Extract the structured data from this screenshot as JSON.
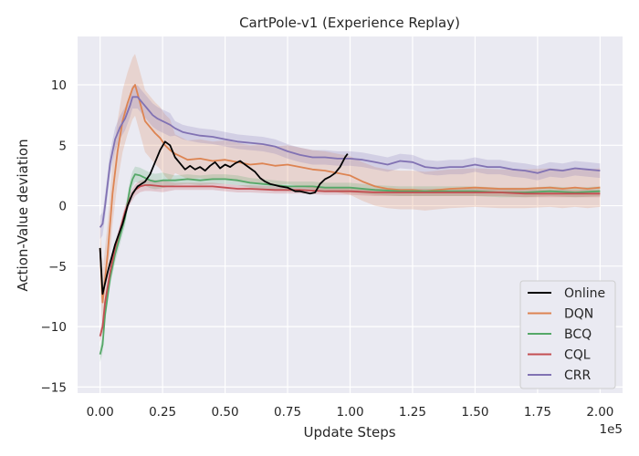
{
  "chart_data": {
    "type": "line",
    "title": "CartPole-v1 (Experience Replay)",
    "xlabel": "Update Steps",
    "ylabel": "Action-Value deviation",
    "x_offset_label": "1e5",
    "xlim": [
      -0.09,
      2.09
    ],
    "ylim": [
      -15.5,
      14
    ],
    "xticks": [
      0.0,
      0.25,
      0.5,
      0.75,
      1.0,
      1.25,
      1.5,
      1.75,
      2.0
    ],
    "xtick_labels": [
      "0.00",
      "0.25",
      "0.50",
      "0.75",
      "1.00",
      "1.25",
      "1.50",
      "1.75",
      "2.00"
    ],
    "yticks": [
      -15,
      -10,
      -5,
      0,
      5,
      10
    ],
    "ytick_labels": [
      "−15",
      "−10",
      "−5",
      "0",
      "5",
      "10"
    ],
    "grid": true,
    "legend_position": "lower-right",
    "series": [
      {
        "name": "Online",
        "color": "#000000",
        "band": 0,
        "points": [
          [
            0.0,
            -3.5
          ],
          [
            0.01,
            -7.3
          ],
          [
            0.03,
            -5.5
          ],
          [
            0.06,
            -3.2
          ],
          [
            0.09,
            -1.5
          ],
          [
            0.11,
            0.0
          ],
          [
            0.13,
            1.0
          ],
          [
            0.15,
            1.6
          ],
          [
            0.18,
            2.0
          ],
          [
            0.2,
            2.6
          ],
          [
            0.22,
            3.6
          ],
          [
            0.24,
            4.6
          ],
          [
            0.26,
            5.3
          ],
          [
            0.28,
            5.0
          ],
          [
            0.3,
            4.0
          ],
          [
            0.32,
            3.5
          ],
          [
            0.34,
            3.0
          ],
          [
            0.36,
            3.3
          ],
          [
            0.38,
            3.0
          ],
          [
            0.4,
            3.2
          ],
          [
            0.42,
            2.9
          ],
          [
            0.44,
            3.3
          ],
          [
            0.46,
            3.6
          ],
          [
            0.48,
            3.1
          ],
          [
            0.5,
            3.4
          ],
          [
            0.52,
            3.2
          ],
          [
            0.54,
            3.5
          ],
          [
            0.56,
            3.7
          ],
          [
            0.58,
            3.4
          ],
          [
            0.6,
            3.1
          ],
          [
            0.62,
            2.8
          ],
          [
            0.64,
            2.3
          ],
          [
            0.66,
            2.0
          ],
          [
            0.68,
            1.8
          ],
          [
            0.7,
            1.7
          ],
          [
            0.72,
            1.6
          ],
          [
            0.75,
            1.5
          ],
          [
            0.78,
            1.2
          ],
          [
            0.8,
            1.2
          ],
          [
            0.82,
            1.1
          ],
          [
            0.84,
            1.0
          ],
          [
            0.86,
            1.1
          ],
          [
            0.88,
            1.8
          ],
          [
            0.9,
            2.2
          ],
          [
            0.92,
            2.4
          ],
          [
            0.94,
            2.7
          ],
          [
            0.96,
            3.2
          ],
          [
            0.98,
            4.0
          ],
          [
            0.99,
            4.3
          ]
        ]
      },
      {
        "name": "DQN",
        "color": "#dd8452",
        "band": 1.6,
        "points": [
          [
            0.0,
            -3.5
          ],
          [
            0.01,
            -8.0
          ],
          [
            0.03,
            -4.0
          ],
          [
            0.05,
            1.0
          ],
          [
            0.07,
            4.5
          ],
          [
            0.09,
            7.0
          ],
          [
            0.11,
            8.5
          ],
          [
            0.13,
            9.7
          ],
          [
            0.14,
            10.0
          ],
          [
            0.16,
            8.5
          ],
          [
            0.18,
            7.0
          ],
          [
            0.2,
            6.5
          ],
          [
            0.22,
            6.0
          ],
          [
            0.24,
            5.6
          ],
          [
            0.26,
            5.0
          ],
          [
            0.28,
            4.6
          ],
          [
            0.3,
            4.3
          ],
          [
            0.32,
            4.1
          ],
          [
            0.35,
            3.8
          ],
          [
            0.4,
            3.9
          ],
          [
            0.45,
            3.7
          ],
          [
            0.5,
            3.8
          ],
          [
            0.55,
            3.6
          ],
          [
            0.6,
            3.4
          ],
          [
            0.65,
            3.5
          ],
          [
            0.7,
            3.3
          ],
          [
            0.75,
            3.4
          ],
          [
            0.8,
            3.2
          ],
          [
            0.85,
            3.0
          ],
          [
            0.9,
            2.9
          ],
          [
            0.95,
            2.7
          ],
          [
            1.0,
            2.5
          ],
          [
            1.05,
            2.0
          ],
          [
            1.1,
            1.6
          ],
          [
            1.15,
            1.4
          ],
          [
            1.2,
            1.3
          ],
          [
            1.25,
            1.3
          ],
          [
            1.3,
            1.2
          ],
          [
            1.35,
            1.3
          ],
          [
            1.4,
            1.4
          ],
          [
            1.5,
            1.5
          ],
          [
            1.6,
            1.4
          ],
          [
            1.7,
            1.4
          ],
          [
            1.8,
            1.5
          ],
          [
            1.85,
            1.4
          ],
          [
            1.9,
            1.5
          ],
          [
            1.95,
            1.4
          ],
          [
            2.0,
            1.5
          ]
        ]
      },
      {
        "name": "BCQ",
        "color": "#55a868",
        "band": 0.4,
        "points": [
          [
            0.0,
            -12.3
          ],
          [
            0.01,
            -11.5
          ],
          [
            0.02,
            -9.0
          ],
          [
            0.04,
            -6.0
          ],
          [
            0.06,
            -4.0
          ],
          [
            0.08,
            -2.5
          ],
          [
            0.1,
            -1.0
          ],
          [
            0.11,
            0.3
          ],
          [
            0.12,
            1.5
          ],
          [
            0.13,
            2.2
          ],
          [
            0.14,
            2.6
          ],
          [
            0.16,
            2.5
          ],
          [
            0.18,
            2.3
          ],
          [
            0.2,
            2.1
          ],
          [
            0.22,
            2.0
          ],
          [
            0.25,
            2.1
          ],
          [
            0.3,
            2.1
          ],
          [
            0.35,
            2.2
          ],
          [
            0.4,
            2.1
          ],
          [
            0.45,
            2.2
          ],
          [
            0.5,
            2.2
          ],
          [
            0.55,
            2.1
          ],
          [
            0.6,
            1.9
          ],
          [
            0.65,
            1.8
          ],
          [
            0.7,
            1.7
          ],
          [
            0.75,
            1.6
          ],
          [
            0.8,
            1.6
          ],
          [
            0.85,
            1.6
          ],
          [
            0.9,
            1.5
          ],
          [
            1.0,
            1.5
          ],
          [
            1.1,
            1.3
          ],
          [
            1.2,
            1.2
          ],
          [
            1.3,
            1.2
          ],
          [
            1.4,
            1.2
          ],
          [
            1.5,
            1.2
          ],
          [
            1.6,
            1.1
          ],
          [
            1.7,
            1.1
          ],
          [
            1.8,
            1.2
          ],
          [
            1.9,
            1.1
          ],
          [
            2.0,
            1.2
          ]
        ]
      },
      {
        "name": "CQL",
        "color": "#c44e52",
        "band": 0.3,
        "points": [
          [
            0.0,
            -10.8
          ],
          [
            0.01,
            -10.0
          ],
          [
            0.02,
            -8.0
          ],
          [
            0.04,
            -5.5
          ],
          [
            0.06,
            -3.5
          ],
          [
            0.08,
            -2.0
          ],
          [
            0.1,
            -0.5
          ],
          [
            0.12,
            0.6
          ],
          [
            0.14,
            1.3
          ],
          [
            0.16,
            1.6
          ],
          [
            0.18,
            1.7
          ],
          [
            0.2,
            1.7
          ],
          [
            0.25,
            1.6
          ],
          [
            0.3,
            1.6
          ],
          [
            0.35,
            1.6
          ],
          [
            0.4,
            1.6
          ],
          [
            0.45,
            1.6
          ],
          [
            0.5,
            1.5
          ],
          [
            0.55,
            1.4
          ],
          [
            0.6,
            1.4
          ],
          [
            0.7,
            1.3
          ],
          [
            0.8,
            1.3
          ],
          [
            0.9,
            1.2
          ],
          [
            1.0,
            1.2
          ],
          [
            1.1,
            1.1
          ],
          [
            1.2,
            1.1
          ],
          [
            1.3,
            1.1
          ],
          [
            1.4,
            1.1
          ],
          [
            1.5,
            1.1
          ],
          [
            1.6,
            1.1
          ],
          [
            1.7,
            1.0
          ],
          [
            1.8,
            1.0
          ],
          [
            1.9,
            1.0
          ],
          [
            2.0,
            1.0
          ]
        ]
      },
      {
        "name": "CRR",
        "color": "#8172b3",
        "band": 0.6,
        "points": [
          [
            0.0,
            -1.8
          ],
          [
            0.01,
            -1.5
          ],
          [
            0.02,
            0.0
          ],
          [
            0.04,
            3.5
          ],
          [
            0.06,
            5.5
          ],
          [
            0.08,
            6.5
          ],
          [
            0.1,
            7.2
          ],
          [
            0.12,
            8.3
          ],
          [
            0.13,
            9.0
          ],
          [
            0.15,
            9.0
          ],
          [
            0.17,
            8.5
          ],
          [
            0.19,
            8.0
          ],
          [
            0.21,
            7.5
          ],
          [
            0.23,
            7.2
          ],
          [
            0.25,
            7.0
          ],
          [
            0.28,
            6.7
          ],
          [
            0.3,
            6.4
          ],
          [
            0.33,
            6.1
          ],
          [
            0.35,
            6.0
          ],
          [
            0.4,
            5.8
          ],
          [
            0.45,
            5.7
          ],
          [
            0.5,
            5.5
          ],
          [
            0.55,
            5.3
          ],
          [
            0.6,
            5.2
          ],
          [
            0.65,
            5.1
          ],
          [
            0.7,
            4.9
          ],
          [
            0.75,
            4.5
          ],
          [
            0.8,
            4.2
          ],
          [
            0.85,
            4.0
          ],
          [
            0.9,
            4.0
          ],
          [
            0.95,
            3.9
          ],
          [
            1.0,
            3.9
          ],
          [
            1.05,
            3.8
          ],
          [
            1.1,
            3.6
          ],
          [
            1.15,
            3.4
          ],
          [
            1.2,
            3.7
          ],
          [
            1.25,
            3.6
          ],
          [
            1.3,
            3.2
          ],
          [
            1.35,
            3.1
          ],
          [
            1.4,
            3.2
          ],
          [
            1.45,
            3.2
          ],
          [
            1.5,
            3.4
          ],
          [
            1.55,
            3.2
          ],
          [
            1.6,
            3.2
          ],
          [
            1.65,
            3.0
          ],
          [
            1.7,
            2.9
          ],
          [
            1.75,
            2.7
          ],
          [
            1.8,
            3.0
          ],
          [
            1.85,
            2.9
          ],
          [
            1.9,
            3.1
          ],
          [
            1.95,
            3.0
          ],
          [
            2.0,
            2.9
          ]
        ]
      }
    ]
  }
}
